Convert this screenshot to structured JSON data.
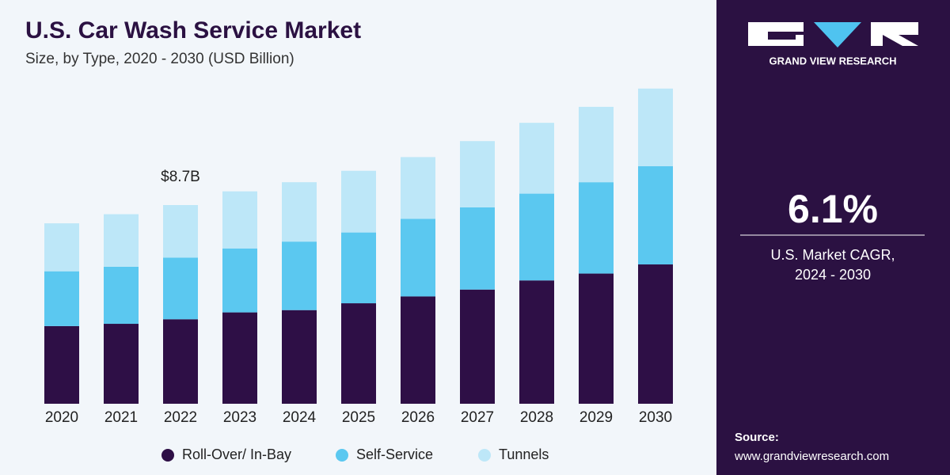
{
  "chart_data": {
    "type": "stacked_bar",
    "title": "U.S. Car Wash Service Market",
    "subtitle": "Size, by Type, 2020 - 2030 (USD Billion)",
    "annotation": "$8.7B",
    "categories": [
      "2020",
      "2021",
      "2022",
      "2023",
      "2024",
      "2025",
      "2026",
      "2027",
      "2028",
      "2029",
      "2030"
    ],
    "series": [
      {
        "name": "Roll-Over/ In-Bay",
        "color": "#2e0f46",
        "values": [
          3.4,
          3.5,
          3.7,
          4.0,
          4.1,
          4.4,
          4.7,
          5.0,
          5.4,
          5.7,
          6.1
        ]
      },
      {
        "name": "Self-Service",
        "color": "#5bc8f0",
        "values": [
          2.4,
          2.5,
          2.7,
          2.8,
          3.0,
          3.1,
          3.4,
          3.6,
          3.8,
          4.0,
          4.3
        ]
      },
      {
        "name": "Tunnels",
        "color": "#bde7f8",
        "values": [
          2.1,
          2.3,
          2.3,
          2.5,
          2.6,
          2.7,
          2.7,
          2.9,
          3.1,
          3.3,
          3.4
        ]
      }
    ]
  },
  "sidebar": {
    "brand": "GRAND VIEW RESEARCH",
    "cagr": "6.1%",
    "cagr_label_1": "U.S. Market CAGR,",
    "cagr_label_2": "2024 - 2030",
    "source_label": "Source:",
    "source_url": "www.grandviewresearch.com"
  }
}
